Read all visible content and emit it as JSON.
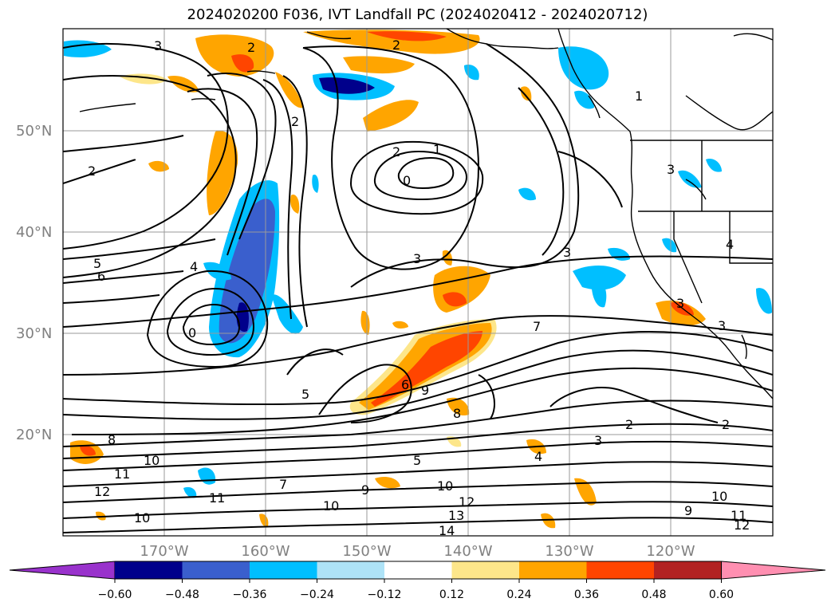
{
  "title": "2024020200 F036, IVT Landfall PC (2024020412 - 2024020712)",
  "map": {
    "lat_labels": [
      "50°N",
      "40°N",
      "30°N",
      "20°N"
    ],
    "lon_labels": [
      "170°W",
      "160°W",
      "150°W",
      "140°W",
      "130°W",
      "120°W"
    ],
    "gridlines": true
  },
  "colorbar": {
    "ticks": [
      "−0.60",
      "−0.48",
      "−0.36",
      "−0.24",
      "−0.12",
      "0.12",
      "0.24",
      "0.36",
      "0.48",
      "0.60"
    ],
    "colors": [
      "#9932cc",
      "#00008b",
      "#3a5fcd",
      "#00bfff",
      "#aee3f7",
      "#ffffff",
      "#fde68a",
      "#ffa500",
      "#ff4500",
      "#b22222",
      "#ff8fb1"
    ],
    "extend": "both"
  },
  "contour_labels": [
    {
      "text": "3"
    },
    {
      "text": "2"
    },
    {
      "text": "2"
    },
    {
      "text": "2"
    },
    {
      "text": "1"
    },
    {
      "text": "2"
    },
    {
      "text": "0"
    },
    {
      "text": "2"
    },
    {
      "text": "4"
    },
    {
      "text": "5"
    },
    {
      "text": "6"
    },
    {
      "text": "3"
    },
    {
      "text": "5"
    },
    {
      "text": "7"
    },
    {
      "text": "6"
    },
    {
      "text": "9"
    },
    {
      "text": "8"
    },
    {
      "text": "8"
    },
    {
      "text": "10"
    },
    {
      "text": "11"
    },
    {
      "text": "12"
    },
    {
      "text": "10"
    },
    {
      "text": "11"
    },
    {
      "text": "7"
    },
    {
      "text": "9"
    },
    {
      "text": "10"
    },
    {
      "text": "10"
    },
    {
      "text": "13"
    },
    {
      "text": "12"
    },
    {
      "text": "14"
    },
    {
      "text": "5"
    },
    {
      "text": "4"
    },
    {
      "text": "3"
    },
    {
      "text": "2"
    },
    {
      "text": "2"
    },
    {
      "text": "9"
    },
    {
      "text": "10"
    },
    {
      "text": "11"
    },
    {
      "text": "12"
    },
    {
      "text": "1"
    },
    {
      "text": "3"
    },
    {
      "text": "4"
    },
    {
      "text": "3"
    },
    {
      "text": "3"
    },
    {
      "text": "0"
    },
    {
      "text": "3"
    }
  ]
}
